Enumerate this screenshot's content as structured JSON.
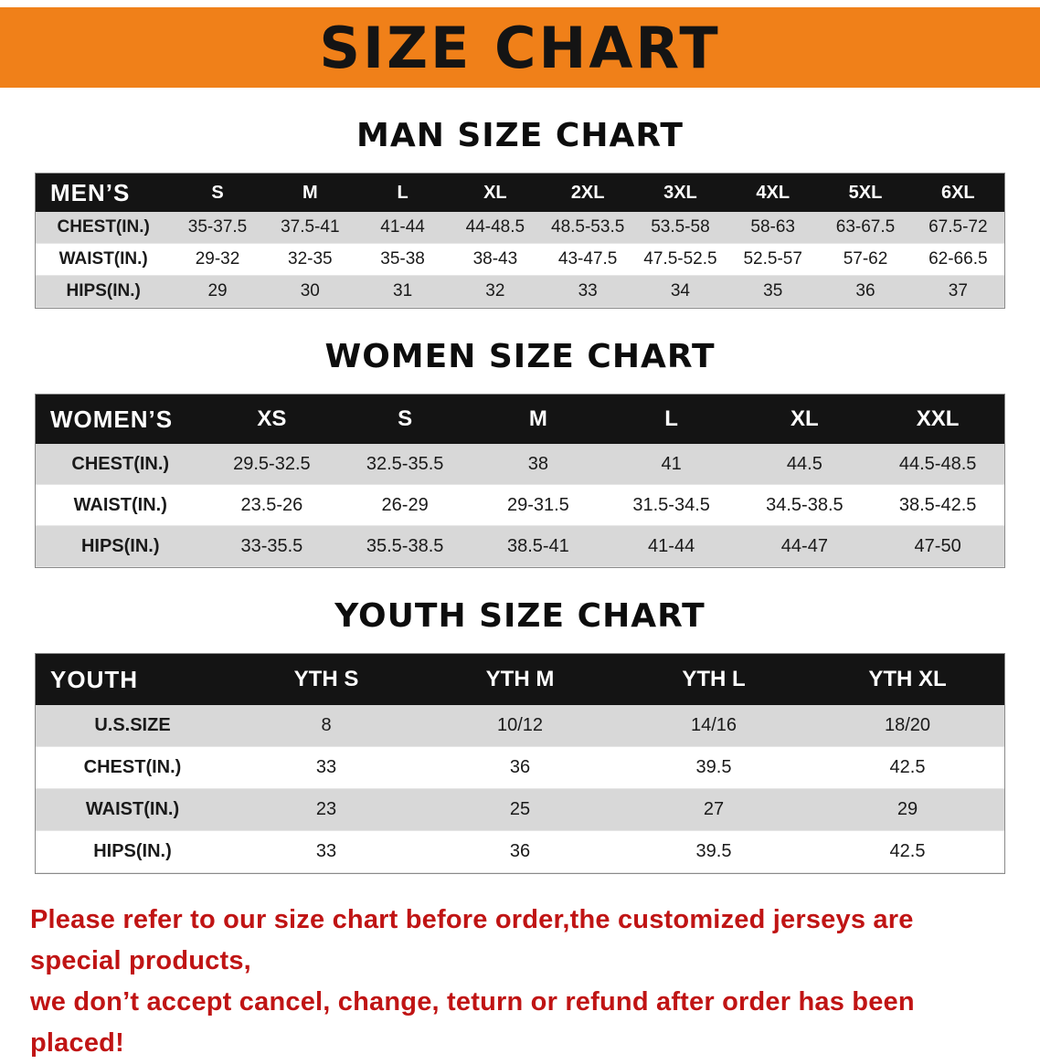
{
  "banner": {
    "title": "SIZE CHART",
    "bg_color": "#f08019"
  },
  "sections": [
    {
      "heading": "MAN SIZE CHART",
      "table": {
        "header": [
          "MEN’S",
          "S",
          "M",
          "L",
          "XL",
          "2XL",
          "3XL",
          "4XL",
          "5XL",
          "6XL"
        ],
        "rows": [
          [
            "CHEST(IN.)",
            "35-37.5",
            "37.5-41",
            "41-44",
            "44-48.5",
            "48.5-53.5",
            "53.5-58",
            "58-63",
            "63-67.5",
            "67.5-72"
          ],
          [
            "WAIST(IN.)",
            "29-32",
            "32-35",
            "35-38",
            "38-43",
            "43-47.5",
            "47.5-52.5",
            "52.5-57",
            "57-62",
            "62-66.5"
          ],
          [
            "HIPS(IN.)",
            "29",
            "30",
            "31",
            "32",
            "33",
            "34",
            "35",
            "36",
            "37"
          ]
        ]
      }
    },
    {
      "heading": "WOMEN SIZE CHART",
      "table": {
        "header": [
          "WOMEN’S",
          "XS",
          "S",
          "M",
          "L",
          "XL",
          "XXL"
        ],
        "rows": [
          [
            "CHEST(IN.)",
            "29.5-32.5",
            "32.5-35.5",
            "38",
            "41",
            "44.5",
            "44.5-48.5"
          ],
          [
            "WAIST(IN.)",
            "23.5-26",
            "26-29",
            "29-31.5",
            "31.5-34.5",
            "34.5-38.5",
            "38.5-42.5"
          ],
          [
            "HIPS(IN.)",
            "33-35.5",
            "35.5-38.5",
            "38.5-41",
            "41-44",
            "44-47",
            "47-50"
          ]
        ]
      }
    },
    {
      "heading": "YOUTH SIZE CHART",
      "table": {
        "header": [
          "YOUTH",
          "YTH S",
          "YTH M",
          "YTH L",
          "YTH XL"
        ],
        "rows": [
          [
            "U.S.SIZE",
            "8",
            "10/12",
            "14/16",
            "18/20"
          ],
          [
            "CHEST(IN.)",
            "33",
            "36",
            "39.5",
            "42.5"
          ],
          [
            "WAIST(IN.)",
            "23",
            "25",
            "27",
            "29"
          ],
          [
            "HIPS(IN.)",
            "33",
            "36",
            "39.5",
            "42.5"
          ]
        ]
      }
    }
  ],
  "footer": {
    "line1": "Please refer to our size chart before order,the customized jerseys are special products,",
    "line2": "we don’t accept cancel, change, teturn or refund after order has been placed!",
    "color": "#c01414"
  }
}
